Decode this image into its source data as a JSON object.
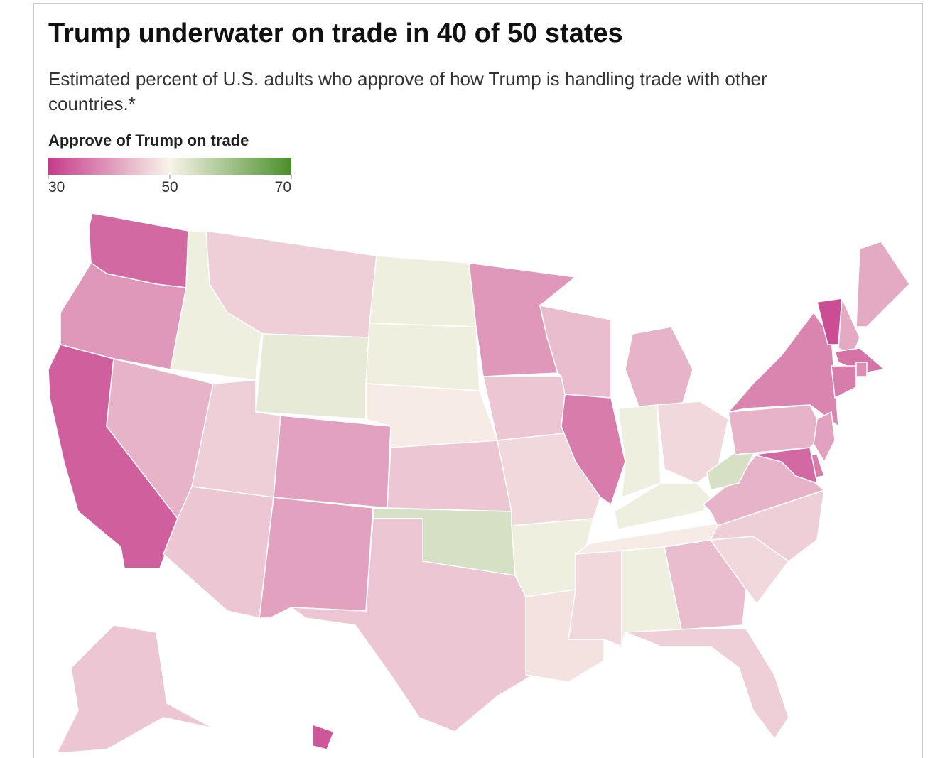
{
  "chart_data": {
    "type": "choropleth",
    "title": "Trump underwater on trade in 40 of 50 states",
    "subtitle": "Estimated percent of U.S. adults who approve of how Trump is handling trade with other countries.*",
    "legend": {
      "title": "Approve of Trump on trade",
      "lim": [
        30,
        70
      ],
      "ticks": [
        30,
        50,
        70
      ],
      "colors": [
        "#c63b8a",
        "#f8f4ea",
        "#4a8f2a"
      ]
    },
    "values": [
      35,
      40,
      34,
      43,
      51,
      46,
      52,
      46,
      45,
      41,
      41,
      51,
      51,
      49,
      45,
      54,
      45,
      40,
      45,
      47,
      51,
      48,
      47,
      51,
      44,
      37,
      43,
      51,
      47,
      51,
      49,
      44,
      46,
      47,
      46,
      43,
      54,
      43,
      38,
      32,
      42,
      42,
      36,
      37,
      39,
      41,
      37,
      35,
      45,
      33
    ]
  }
}
